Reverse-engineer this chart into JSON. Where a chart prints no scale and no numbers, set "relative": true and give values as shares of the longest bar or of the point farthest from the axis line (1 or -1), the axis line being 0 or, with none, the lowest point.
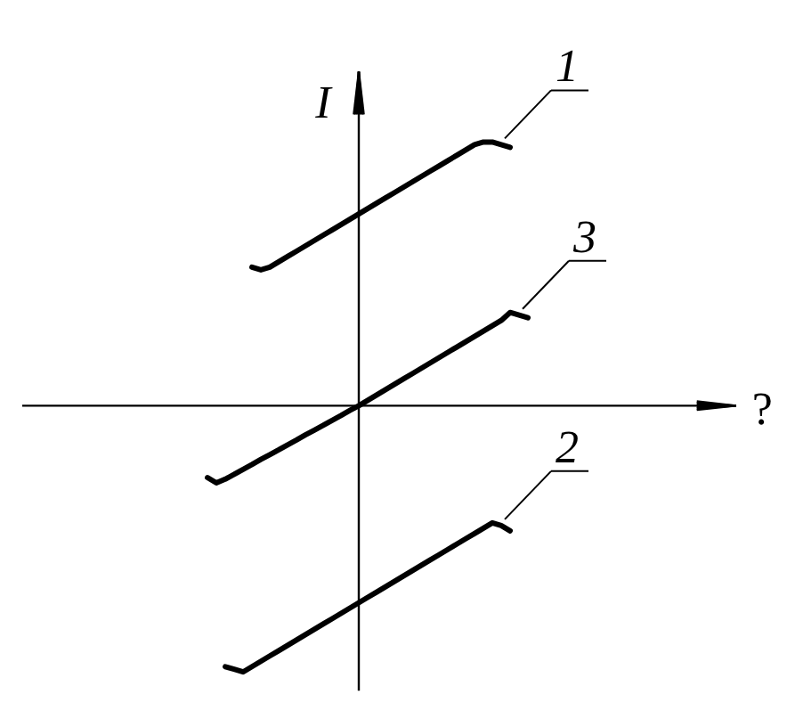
{
  "chart_data": {
    "type": "line",
    "relative": true,
    "xlabel": "?",
    "ylabel": "I",
    "line_style": "solid",
    "legend": "right",
    "categories": [
      null,
      null,
      null,
      null,
      null,
      null,
      null,
      null,
      null,
      null,
      null,
      null,
      null,
      null,
      null,
      null,
      null,
      null,
      null,
      null,
      null,
      null,
      null,
      null,
      null,
      null,
      null,
      null,
      null,
      null,
      null,
      null,
      null,
      null,
      null,
      null,
      null,
      null,
      null
    ],
    "series": [
      {
        "name": "1",
        "color": "#000000",
        "values": [
          null,
          null,
          null,
          null,
          null,
          null,
          null,
          0.52,
          0.51,
          0.52,
          0.54,
          0.56,
          0.58,
          0.6,
          0.62,
          0.64,
          0.66,
          0.68,
          0.7,
          0.72,
          0.74,
          0.76,
          0.78,
          0.8,
          0.82,
          0.84,
          0.86,
          0.88,
          0.9,
          0.92,
          0.94,
          0.96,
          0.98,
          0.99,
          0.99,
          0.98,
          0.97,
          null,
          null
        ]
      },
      {
        "name": "2",
        "color": "#000000",
        "values": [
          null,
          null,
          null,
          null,
          -0.98,
          -0.99,
          -1.0,
          -0.98,
          -0.96,
          -0.94,
          -0.92,
          -0.9,
          -0.88,
          -0.86,
          -0.84,
          -0.82,
          -0.8,
          -0.78,
          -0.76,
          -0.74,
          -0.72,
          -0.7,
          -0.68,
          -0.66,
          -0.64,
          -0.62,
          -0.6,
          -0.58,
          -0.56,
          -0.54,
          -0.52,
          -0.5,
          -0.48,
          -0.46,
          -0.44,
          -0.45,
          -0.47,
          null,
          null
        ]
      },
      {
        "name": "3",
        "color": "#000000",
        "values": [
          null,
          null,
          -0.27,
          -0.29,
          -0.276,
          -0.258,
          -0.239,
          -0.221,
          -0.202,
          -0.184,
          -0.166,
          -0.147,
          -0.129,
          -0.11,
          -0.092,
          -0.074,
          -0.055,
          -0.037,
          -0.018,
          0,
          0.02,
          0.04,
          0.06,
          0.08,
          0.1,
          0.12,
          0.14,
          0.16,
          0.18,
          0.2,
          0.22,
          0.24,
          0.26,
          0.28,
          0.3,
          0.32,
          0.35,
          0.34,
          0.33
        ]
      }
    ]
  }
}
